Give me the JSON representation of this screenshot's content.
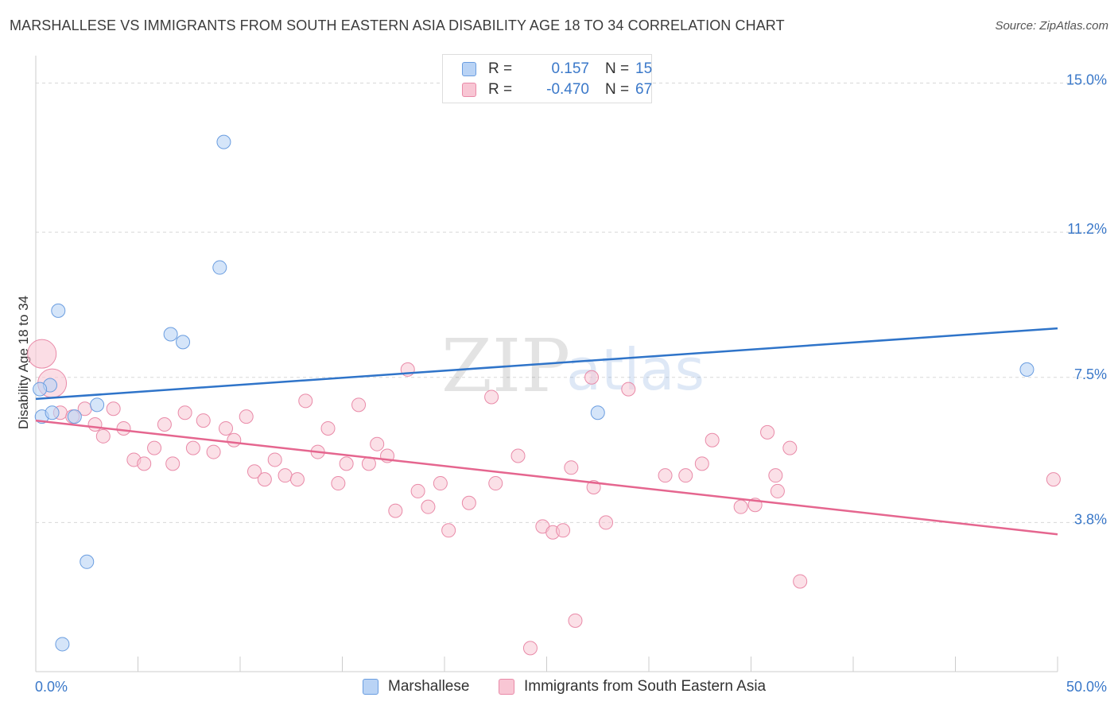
{
  "header": {
    "title": "MARSHALLESE VS IMMIGRANTS FROM SOUTH EASTERN ASIA DISABILITY AGE 18 TO 34 CORRELATION CHART",
    "source": "Source: ZipAtlas.com"
  },
  "watermark": {
    "zip": "ZIP",
    "atlas": "atlas"
  },
  "legend": {
    "series1": {
      "r_label": "R =",
      "r_value": "0.157",
      "n_label": "N =",
      "n_value": "15"
    },
    "series2": {
      "r_label": "R =",
      "r_value": "-0.470",
      "n_label": "N =",
      "n_value": "67"
    }
  },
  "colors": {
    "blue_fill": "#b9d3f5",
    "blue_stroke": "#6a9de0",
    "blue_line": "#2f74c9",
    "pink_fill": "#f8c6d4",
    "pink_stroke": "#e98aa8",
    "pink_line": "#e5668f",
    "tick_text": "#3a78c9",
    "grid": "#d8d8d8"
  },
  "chart_data": {
    "type": "scatter",
    "title": "MARSHALLESE VS IMMIGRANTS FROM SOUTH EASTERN ASIA DISABILITY AGE 18 TO 34 CORRELATION CHART",
    "xlabel": "",
    "ylabel": "Disability Age 18 to 34",
    "xlim": [
      0,
      50
    ],
    "ylim": [
      0,
      15.7
    ],
    "x_tick_labels": [
      "0.0%",
      "50.0%"
    ],
    "y_ticks": [
      3.8,
      7.5,
      11.2,
      15.0
    ],
    "y_tick_labels": [
      "3.8%",
      "7.5%",
      "11.2%",
      "15.0%"
    ],
    "legend_position": "top-center",
    "series": [
      {
        "name": "Marshallese",
        "color": "#6a9de0",
        "points": [
          {
            "x": 0.3,
            "y": 6.5
          },
          {
            "x": 0.7,
            "y": 7.3
          },
          {
            "x": 0.8,
            "y": 6.6
          },
          {
            "x": 1.1,
            "y": 9.2
          },
          {
            "x": 1.3,
            "y": 0.7
          },
          {
            "x": 1.9,
            "y": 6.5
          },
          {
            "x": 2.5,
            "y": 2.8
          },
          {
            "x": 3.0,
            "y": 6.8
          },
          {
            "x": 6.6,
            "y": 8.6
          },
          {
            "x": 7.2,
            "y": 8.4
          },
          {
            "x": 9.0,
            "y": 10.3
          },
          {
            "x": 9.2,
            "y": 13.5
          },
          {
            "x": 27.5,
            "y": 6.6
          },
          {
            "x": 48.5,
            "y": 7.7
          },
          {
            "x": 0.2,
            "y": 7.2
          }
        ],
        "trend": {
          "x": [
            0,
            50
          ],
          "y": [
            6.95,
            8.75
          ]
        }
      },
      {
        "name": "Immigrants from South Eastern Asia",
        "color": "#e98aa8",
        "points": [
          {
            "x": 0.3,
            "y": 8.1,
            "big": true
          },
          {
            "x": 0.8,
            "y": 7.35,
            "big": true
          },
          {
            "x": 1.2,
            "y": 6.6
          },
          {
            "x": 1.8,
            "y": 6.5
          },
          {
            "x": 2.4,
            "y": 6.7
          },
          {
            "x": 2.9,
            "y": 6.3
          },
          {
            "x": 3.3,
            "y": 6.0
          },
          {
            "x": 3.8,
            "y": 6.7
          },
          {
            "x": 4.3,
            "y": 6.2
          },
          {
            "x": 4.8,
            "y": 5.4
          },
          {
            "x": 5.3,
            "y": 5.3
          },
          {
            "x": 5.8,
            "y": 5.7
          },
          {
            "x": 6.3,
            "y": 6.3
          },
          {
            "x": 6.7,
            "y": 5.3
          },
          {
            "x": 7.3,
            "y": 6.6
          },
          {
            "x": 7.7,
            "y": 5.7
          },
          {
            "x": 8.2,
            "y": 6.4
          },
          {
            "x": 8.7,
            "y": 5.6
          },
          {
            "x": 9.3,
            "y": 6.2
          },
          {
            "x": 9.7,
            "y": 5.9
          },
          {
            "x": 10.3,
            "y": 6.5
          },
          {
            "x": 10.7,
            "y": 5.1
          },
          {
            "x": 11.2,
            "y": 4.9
          },
          {
            "x": 11.7,
            "y": 5.4
          },
          {
            "x": 12.2,
            "y": 5.0
          },
          {
            "x": 12.8,
            "y": 4.9
          },
          {
            "x": 13.2,
            "y": 6.9
          },
          {
            "x": 13.8,
            "y": 5.6
          },
          {
            "x": 14.3,
            "y": 6.2
          },
          {
            "x": 14.8,
            "y": 4.8
          },
          {
            "x": 15.2,
            "y": 5.3
          },
          {
            "x": 15.8,
            "y": 6.8
          },
          {
            "x": 16.3,
            "y": 5.3
          },
          {
            "x": 16.7,
            "y": 5.8
          },
          {
            "x": 17.2,
            "y": 5.5
          },
          {
            "x": 17.6,
            "y": 4.1
          },
          {
            "x": 18.2,
            "y": 7.7
          },
          {
            "x": 18.7,
            "y": 4.6
          },
          {
            "x": 19.2,
            "y": 4.2
          },
          {
            "x": 19.8,
            "y": 4.8
          },
          {
            "x": 20.2,
            "y": 3.6
          },
          {
            "x": 21.2,
            "y": 4.3
          },
          {
            "x": 22.3,
            "y": 7.0
          },
          {
            "x": 22.5,
            "y": 4.8
          },
          {
            "x": 23.6,
            "y": 5.5
          },
          {
            "x": 24.2,
            "y": 0.6
          },
          {
            "x": 24.8,
            "y": 3.7
          },
          {
            "x": 25.3,
            "y": 3.55
          },
          {
            "x": 25.8,
            "y": 3.6
          },
          {
            "x": 26.2,
            "y": 5.2
          },
          {
            "x": 26.4,
            "y": 1.3
          },
          {
            "x": 27.2,
            "y": 7.5
          },
          {
            "x": 27.3,
            "y": 4.7
          },
          {
            "x": 27.9,
            "y": 3.8
          },
          {
            "x": 29.0,
            "y": 7.2
          },
          {
            "x": 30.8,
            "y": 5.0
          },
          {
            "x": 31.8,
            "y": 5.0
          },
          {
            "x": 32.6,
            "y": 5.3
          },
          {
            "x": 33.1,
            "y": 5.9
          },
          {
            "x": 34.5,
            "y": 4.2
          },
          {
            "x": 35.2,
            "y": 4.25
          },
          {
            "x": 35.8,
            "y": 6.1
          },
          {
            "x": 36.2,
            "y": 5.0
          },
          {
            "x": 36.9,
            "y": 5.7
          },
          {
            "x": 37.4,
            "y": 2.3
          },
          {
            "x": 36.3,
            "y": 4.6
          },
          {
            "x": 49.8,
            "y": 4.9
          }
        ],
        "trend": {
          "x": [
            0,
            50
          ],
          "y": [
            6.4,
            3.5
          ]
        }
      }
    ]
  },
  "bottom_legend": {
    "items": [
      {
        "label": "Marshallese"
      },
      {
        "label": "Immigrants from South Eastern Asia"
      }
    ]
  }
}
